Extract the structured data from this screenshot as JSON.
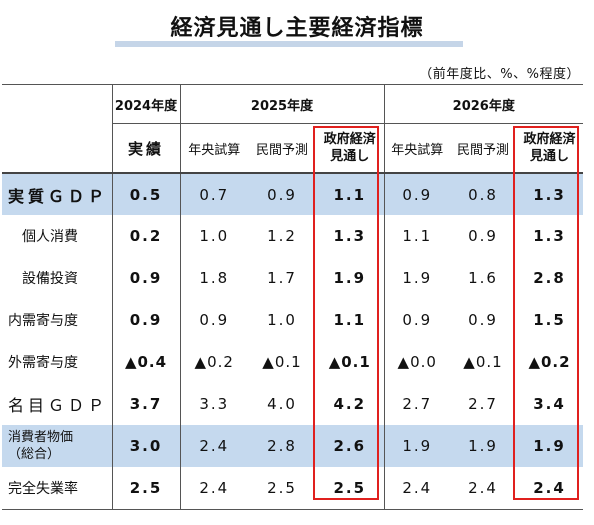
{
  "title": "経済見通し主要経済指標",
  "unit_note": "（前年度比、%、%程度）",
  "header": {
    "fy2024": "2024年度",
    "fy2025": "2025年度",
    "fy2026": "2026年度",
    "actual": "実績",
    "midyear": "年央試算",
    "private": "民間予測",
    "govt_line1": "政府経済",
    "govt_line2": "見通し"
  },
  "rows": [
    {
      "label": "実質ＧＤＰ",
      "vals": [
        "0.5",
        "0.7",
        "0.9",
        "1.1",
        "0.9",
        "0.8",
        "1.3"
      ]
    },
    {
      "label": "個人消費",
      "vals": [
        "0.2",
        "1.0",
        "1.2",
        "1.3",
        "1.1",
        "0.9",
        "1.3"
      ]
    },
    {
      "label": "設備投資",
      "vals": [
        "0.9",
        "1.8",
        "1.7",
        "1.9",
        "1.9",
        "1.6",
        "2.8"
      ]
    },
    {
      "label": "内需寄与度",
      "vals": [
        "0.9",
        "0.9",
        "1.0",
        "1.1",
        "0.9",
        "0.9",
        "1.5"
      ]
    },
    {
      "label": "外需寄与度",
      "vals": [
        "▲0.4",
        "▲0.2",
        "▲0.1",
        "▲0.1",
        "▲0.0",
        "▲0.1",
        "▲0.2"
      ]
    },
    {
      "label": "名目ＧＤＰ",
      "vals": [
        "3.7",
        "3.3",
        "4.0",
        "4.2",
        "2.7",
        "2.7",
        "3.4"
      ]
    },
    {
      "label_line1": "消費者物価",
      "label_line2": "（総合）",
      "vals": [
        "3.0",
        "2.4",
        "2.8",
        "2.6",
        "1.9",
        "1.9",
        "1.9"
      ]
    },
    {
      "label": "完全失業率",
      "vals": [
        "2.5",
        "2.4",
        "2.5",
        "2.5",
        "2.4",
        "2.4",
        "2.4"
      ]
    }
  ],
  "colors": {
    "highlight_row": "#c5d9ee",
    "govt_box": "#e0201e",
    "title_bar": "#c5d5e8"
  }
}
